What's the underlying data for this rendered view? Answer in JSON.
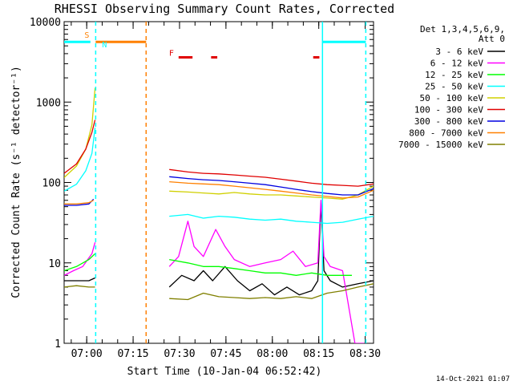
{
  "chart_data": {
    "type": "line",
    "title": "RHESSI Observing Summary Count Rates, Corrected",
    "xlabel": "Start Time (10-Jan-04 06:52:42)",
    "ylabel": "Corrected Count Rate (s⁻¹ detector⁻¹)",
    "ylog": true,
    "ylim": [
      1,
      10000
    ],
    "xlim_minutes": [
      0,
      100
    ],
    "x_ticks": [
      {
        "label": "07:00",
        "minutes": 7.3
      },
      {
        "label": "07:15",
        "minutes": 22.3
      },
      {
        "label": "07:30",
        "minutes": 37.3
      },
      {
        "label": "07:45",
        "minutes": 52.3
      },
      {
        "label": "08:00",
        "minutes": 67.3
      },
      {
        "label": "08:15",
        "minutes": 82.3
      },
      {
        "label": "08:30",
        "minutes": 97.3
      }
    ],
    "y_ticks": [
      {
        "label": "1",
        "value": 1
      },
      {
        "label": "10",
        "value": 10
      },
      {
        "label": "100",
        "value": 100
      },
      {
        "label": "1000",
        "value": 1000
      },
      {
        "label": "10000",
        "value": 10000
      }
    ],
    "legend_header": [
      "Det 1,3,4,5,6,9,",
      "Att 0"
    ],
    "legend_position": "top-right",
    "series": [
      {
        "name": "3 - 6 keV",
        "color": "#000000",
        "pre": [
          [
            0,
            6
          ],
          [
            5,
            6
          ],
          [
            8,
            6
          ],
          [
            10,
            6.5
          ]
        ],
        "post": [
          [
            34,
            5
          ],
          [
            38,
            7
          ],
          [
            42,
            6
          ],
          [
            45,
            8
          ],
          [
            48,
            6
          ],
          [
            52,
            9
          ],
          [
            56,
            6
          ],
          [
            60,
            4.5
          ],
          [
            64,
            5.5
          ],
          [
            68,
            4
          ],
          [
            72,
            5
          ],
          [
            76,
            4
          ],
          [
            80,
            4.5
          ],
          [
            82,
            6
          ],
          [
            83,
            55
          ],
          [
            84,
            8
          ],
          [
            86,
            6
          ],
          [
            90,
            5
          ],
          [
            95,
            5.5
          ],
          [
            100,
            6
          ]
        ]
      },
      {
        "name": "6 - 12 keV",
        "color": "#ff00ff",
        "pre": [
          [
            0,
            7
          ],
          [
            3,
            8
          ],
          [
            6,
            9
          ],
          [
            9,
            13
          ],
          [
            10,
            18
          ]
        ],
        "post": [
          [
            34,
            9
          ],
          [
            37,
            12
          ],
          [
            40,
            33
          ],
          [
            42,
            16
          ],
          [
            45,
            12
          ],
          [
            49,
            26
          ],
          [
            52,
            16
          ],
          [
            55,
            11
          ],
          [
            60,
            9
          ],
          [
            65,
            10
          ],
          [
            70,
            11
          ],
          [
            74,
            14
          ],
          [
            78,
            9
          ],
          [
            82,
            10
          ],
          [
            83,
            60
          ],
          [
            84,
            12
          ],
          [
            86,
            9
          ],
          [
            90,
            8
          ],
          [
            94,
            1
          ],
          [
            97,
            1
          ]
        ]
      },
      {
        "name": "12 - 25 keV",
        "color": "#00ff00",
        "pre": [
          [
            0,
            8
          ],
          [
            4,
            9
          ],
          [
            8,
            11
          ],
          [
            10,
            13
          ]
        ],
        "post": [
          [
            34,
            11
          ],
          [
            40,
            10
          ],
          [
            45,
            9
          ],
          [
            50,
            9
          ],
          [
            55,
            8.5
          ],
          [
            60,
            8
          ],
          [
            65,
            7.5
          ],
          [
            70,
            7.5
          ],
          [
            75,
            7
          ],
          [
            80,
            7.5
          ],
          [
            85,
            7
          ],
          [
            90,
            7
          ],
          [
            93,
            7
          ]
        ]
      },
      {
        "name": "25 - 50 keV",
        "color": "#00ffff",
        "pre": [
          [
            0,
            78
          ],
          [
            4,
            95
          ],
          [
            7,
            140
          ],
          [
            9,
            230
          ],
          [
            10,
            480
          ]
        ],
        "post": [
          [
            34,
            38
          ],
          [
            40,
            40
          ],
          [
            45,
            36
          ],
          [
            50,
            38
          ],
          [
            55,
            37
          ],
          [
            60,
            35
          ],
          [
            65,
            34
          ],
          [
            70,
            35
          ],
          [
            75,
            33
          ],
          [
            80,
            32
          ],
          [
            85,
            31
          ],
          [
            90,
            32
          ],
          [
            95,
            35
          ],
          [
            100,
            38
          ]
        ]
      },
      {
        "name": "50 - 100 keV",
        "color": "#d0d000",
        "pre": [
          [
            0,
            115
          ],
          [
            4,
            160
          ],
          [
            7,
            260
          ],
          [
            9,
            520
          ],
          [
            10,
            1500
          ]
        ],
        "post": [
          [
            34,
            78
          ],
          [
            40,
            76
          ],
          [
            45,
            74
          ],
          [
            50,
            72
          ],
          [
            55,
            75
          ],
          [
            60,
            72
          ],
          [
            65,
            70
          ],
          [
            70,
            70
          ],
          [
            75,
            68
          ],
          [
            80,
            66
          ],
          [
            85,
            64
          ],
          [
            90,
            62
          ],
          [
            95,
            70
          ],
          [
            100,
            90
          ]
        ]
      },
      {
        "name": "100 - 300 keV",
        "color": "#e00000",
        "pre": [
          [
            0,
            130
          ],
          [
            4,
            170
          ],
          [
            7,
            260
          ],
          [
            9,
            420
          ],
          [
            10,
            600
          ]
        ],
        "post": [
          [
            34,
            145
          ],
          [
            40,
            135
          ],
          [
            45,
            130
          ],
          [
            50,
            128
          ],
          [
            55,
            124
          ],
          [
            60,
            120
          ],
          [
            65,
            116
          ],
          [
            70,
            110
          ],
          [
            75,
            104
          ],
          [
            80,
            98
          ],
          [
            85,
            94
          ],
          [
            90,
            92
          ],
          [
            95,
            90
          ],
          [
            100,
            96
          ]
        ]
      },
      {
        "name": "300 - 800 keV",
        "color": "#0000e0",
        "pre": [
          [
            0,
            52
          ],
          [
            4,
            52
          ],
          [
            8,
            54
          ],
          [
            9.5,
            62
          ]
        ],
        "post": [
          [
            34,
            118
          ],
          [
            40,
            112
          ],
          [
            45,
            108
          ],
          [
            50,
            106
          ],
          [
            55,
            102
          ],
          [
            60,
            98
          ],
          [
            65,
            94
          ],
          [
            70,
            88
          ],
          [
            75,
            82
          ],
          [
            80,
            77
          ],
          [
            85,
            73
          ],
          [
            90,
            70
          ],
          [
            95,
            70
          ],
          [
            100,
            84
          ]
        ]
      },
      {
        "name": "800 - 7000 keV",
        "color": "#ff8000",
        "pre": [
          [
            0,
            54
          ],
          [
            4,
            54
          ],
          [
            8,
            56
          ],
          [
            9.5,
            60
          ]
        ],
        "post": [
          [
            34,
            102
          ],
          [
            40,
            98
          ],
          [
            45,
            96
          ],
          [
            50,
            94
          ],
          [
            55,
            90
          ],
          [
            60,
            86
          ],
          [
            65,
            82
          ],
          [
            70,
            78
          ],
          [
            75,
            74
          ],
          [
            80,
            70
          ],
          [
            85,
            67
          ],
          [
            90,
            64
          ],
          [
            95,
            66
          ],
          [
            100,
            80
          ]
        ]
      },
      {
        "name": "7000 - 15000 keV",
        "color": "#808000",
        "pre": [
          [
            0,
            5
          ],
          [
            4,
            5.2
          ],
          [
            8,
            5
          ],
          [
            10,
            5
          ]
        ],
        "post": [
          [
            34,
            3.6
          ],
          [
            40,
            3.5
          ],
          [
            45,
            4.2
          ],
          [
            50,
            3.8
          ],
          [
            55,
            3.7
          ],
          [
            60,
            3.6
          ],
          [
            65,
            3.7
          ],
          [
            70,
            3.6
          ],
          [
            75,
            3.8
          ],
          [
            80,
            3.6
          ],
          [
            85,
            4.2
          ],
          [
            90,
            4.5
          ],
          [
            95,
            5
          ],
          [
            100,
            5.5
          ]
        ]
      }
    ],
    "flag_bars": [
      {
        "label": "S",
        "color": "#ff8000",
        "x0": -1,
        "x1": 10.2,
        "y": 5600,
        "draw": false
      },
      {
        "label": "N",
        "color": "#ff8000",
        "x0": 10.2,
        "x1": 26.5,
        "y": 5600
      },
      {
        "label": "F",
        "color": "#e00000",
        "x0": 37,
        "x1": 41.5,
        "y": 3600
      },
      {
        "label": "",
        "color": "#e00000",
        "x0": 47.5,
        "x1": 49.5,
        "y": 3600
      },
      {
        "label": "",
        "color": "#e00000",
        "x0": 80.5,
        "x1": 82.5,
        "y": 3600
      }
    ],
    "cyan_bars": [
      {
        "x0": -1,
        "x1": 8.5,
        "y": 5600
      },
      {
        "x0": 83.5,
        "x1": 97.5,
        "y": 5600
      }
    ],
    "vlines_solid_cyan": [
      -0.3,
      83.5
    ],
    "vlines_dashed_cyan": [
      10.2,
      97.5
    ],
    "vlines_dashed_orange": [
      26.5
    ]
  },
  "footer_date": "14-Oct-2021 01:07"
}
